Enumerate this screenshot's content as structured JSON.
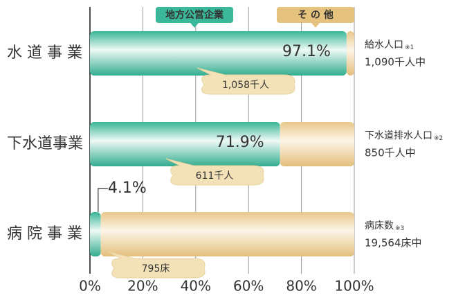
{
  "chart_data": {
    "type": "stacked-bar-horizontal",
    "categories": [
      "水 道 事 業",
      "下水道事業",
      "病 院 事 業"
    ],
    "series": [
      {
        "name": "地方公営企業",
        "color": "#3bb89a",
        "values": [
          97.1,
          71.9,
          4.1
        ],
        "value_labels": [
          "97.1%",
          "71.9%",
          "4.1%"
        ]
      },
      {
        "name": "そ の 他",
        "color": "#e6c27f",
        "values": [
          2.9,
          28.1,
          95.9
        ]
      }
    ],
    "xlim": [
      0,
      100
    ],
    "xticks": [
      {
        "value": 0,
        "label": "0%"
      },
      {
        "value": 20,
        "label": "20%"
      },
      {
        "value": 40,
        "label": "40%"
      },
      {
        "value": 60,
        "label": "60%"
      },
      {
        "value": 80,
        "label": "80%"
      },
      {
        "value": 100,
        "label": "100%"
      }
    ],
    "grid": true,
    "annotations": [
      {
        "callout": "1,058千人",
        "note": "給水人口",
        "ref": "※1",
        "total": "1,090千人中"
      },
      {
        "callout": "611千人",
        "note": "下水道排水人口",
        "ref": "※2",
        "total": "850千人中"
      },
      {
        "callout": "795床",
        "note": "病床数",
        "ref": "※3",
        "total": "19,564床中"
      }
    ]
  }
}
